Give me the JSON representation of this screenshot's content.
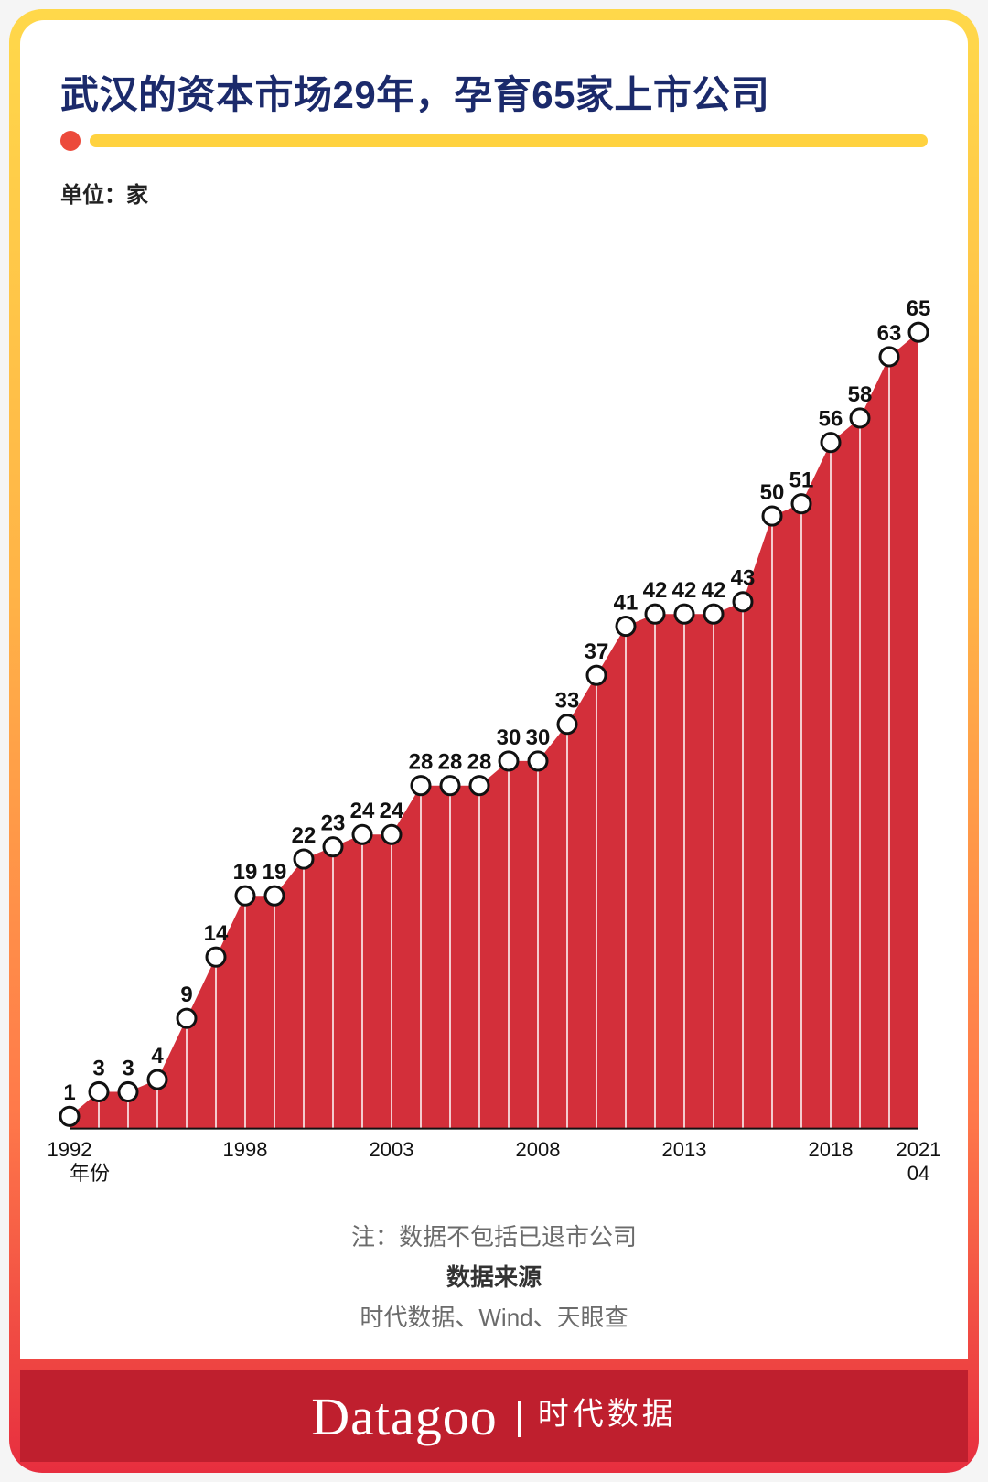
{
  "title": "武汉的资本市场29年，孕育65家上市公司",
  "unit_label": "单位：家",
  "underline": {
    "dot_color": "#ec4a3b",
    "bar_color": "#ffd23f"
  },
  "chart": {
    "type": "area",
    "fill_color": "#d32f3a",
    "marker_fill": "#ffffff",
    "marker_stroke": "#111111",
    "marker_stroke_width": 3,
    "marker_radius": 10,
    "label_fontsize": 24,
    "label_fontweight": "700",
    "label_color": "#111111",
    "drop_line_color": "#ffffff",
    "drop_line_width": 1.5,
    "axis_line_color": "#111111",
    "axis_line_width": 2,
    "background_color": "#ffffff",
    "y_domain": [
      0,
      70
    ],
    "x_axis_sub": "年份",
    "xtick_years": [
      1992,
      1998,
      2003,
      2008,
      2013,
      2018
    ],
    "last_label": "2021\n04",
    "years": [
      1992,
      1993,
      1994,
      1995,
      1996,
      1997,
      1998,
      1999,
      2000,
      2001,
      2002,
      2003,
      2004,
      2005,
      2006,
      2007,
      2008,
      2009,
      2010,
      2011,
      2012,
      2013,
      2014,
      2015,
      2016,
      2017,
      2018,
      2019,
      2020,
      2021
    ],
    "values": [
      1,
      3,
      3,
      4,
      9,
      14,
      19,
      19,
      22,
      23,
      24,
      24,
      28,
      28,
      28,
      30,
      30,
      33,
      37,
      41,
      42,
      42,
      42,
      43,
      50,
      51,
      56,
      58,
      63,
      65
    ]
  },
  "notes": {
    "line1": "注：数据不包括已退市公司",
    "source_title": "数据来源",
    "source_list": "时代数据、Wind、天眼查"
  },
  "footer": {
    "brand_en": "Datagoo",
    "brand_cn": "时代数据",
    "band_color": "#bf1f2e"
  }
}
